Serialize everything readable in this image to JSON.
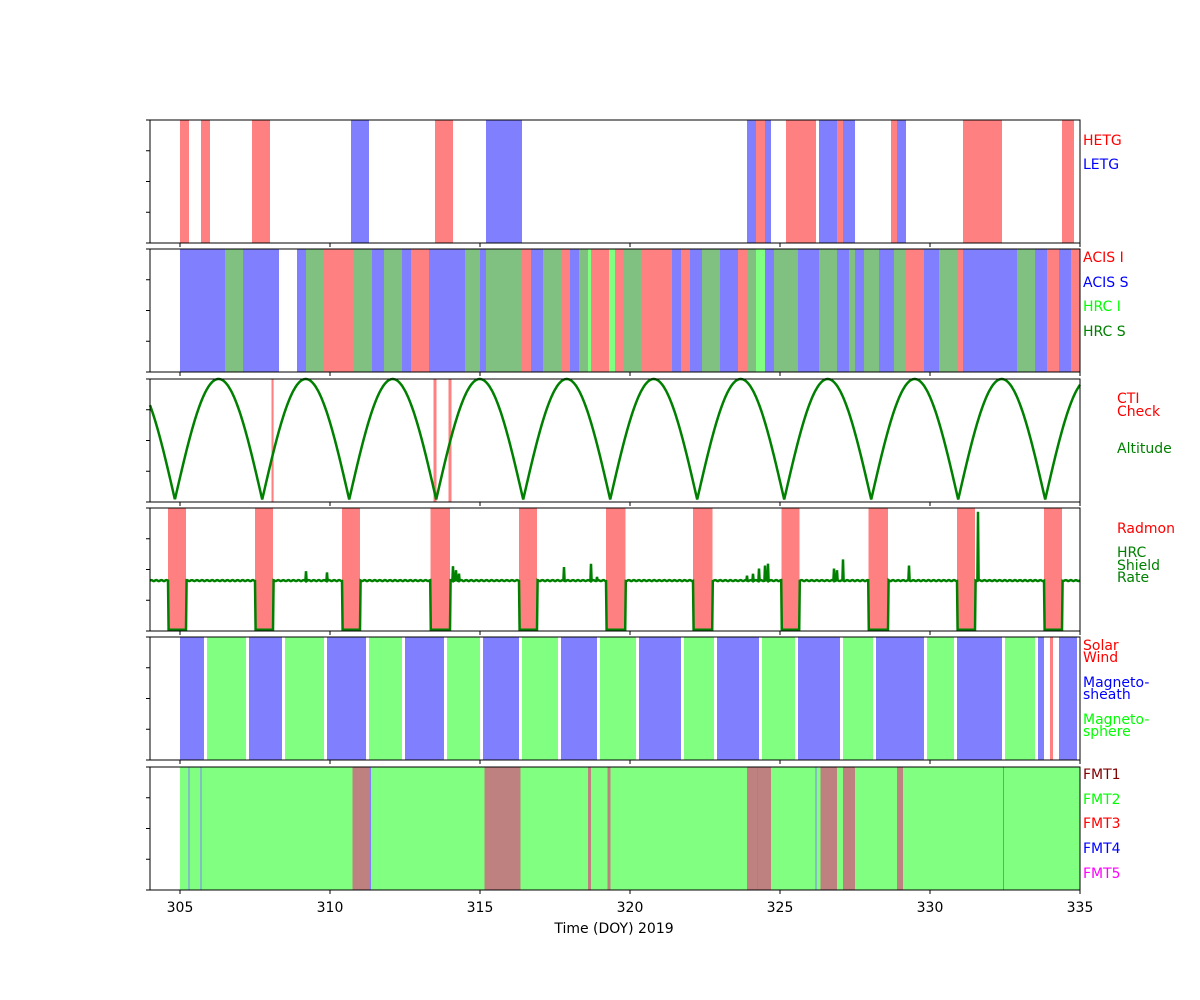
{
  "chart_data": {
    "type": "timeline",
    "xlabel": "Time (DOY) 2019",
    "xlim": [
      304,
      335
    ],
    "xticks": [
      305,
      310,
      315,
      320,
      325,
      330,
      335
    ],
    "panels": [
      {
        "id": "grating",
        "legend": [
          {
            "text": "HETG",
            "color": "#ff0000"
          },
          {
            "text": "LETG",
            "color": "#0000ff"
          }
        ],
        "bands": [
          {
            "start": 305.0,
            "end": 305.3,
            "color": "#ff8080"
          },
          {
            "start": 305.7,
            "end": 306.0,
            "color": "#ff8080"
          },
          {
            "start": 307.4,
            "end": 308.0,
            "color": "#ff8080"
          },
          {
            "start": 310.7,
            "end": 311.3,
            "color": "#8080ff"
          },
          {
            "start": 313.5,
            "end": 314.1,
            "color": "#ff8080"
          },
          {
            "start": 315.2,
            "end": 316.4,
            "color": "#8080ff"
          },
          {
            "start": 323.9,
            "end": 324.2,
            "color": "#8080ff"
          },
          {
            "start": 324.2,
            "end": 324.5,
            "color": "#ff8080"
          },
          {
            "start": 324.5,
            "end": 324.7,
            "color": "#8080ff"
          },
          {
            "start": 325.2,
            "end": 326.2,
            "color": "#ff8080"
          },
          {
            "start": 326.3,
            "end": 326.9,
            "color": "#8080ff"
          },
          {
            "start": 326.9,
            "end": 327.1,
            "color": "#ff8080"
          },
          {
            "start": 327.1,
            "end": 327.5,
            "color": "#8080ff"
          },
          {
            "start": 328.7,
            "end": 328.9,
            "color": "#ff8080"
          },
          {
            "start": 328.9,
            "end": 329.2,
            "color": "#8080ff"
          },
          {
            "start": 331.1,
            "end": 332.4,
            "color": "#ff8080"
          },
          {
            "start": 334.4,
            "end": 334.8,
            "color": "#ff8080"
          }
        ]
      },
      {
        "id": "instrument",
        "legend": [
          {
            "text": "ACIS I",
            "color": "#ff0000"
          },
          {
            "text": "ACIS S",
            "color": "#0000ff"
          },
          {
            "text": "HRC I",
            "color": "#00ff00"
          },
          {
            "text": "HRC S",
            "color": "#008000"
          }
        ],
        "bands": [
          {
            "start": 305.0,
            "end": 306.5,
            "color": "#8080ff"
          },
          {
            "start": 306.5,
            "end": 307.1,
            "color": "#80c080"
          },
          {
            "start": 307.1,
            "end": 308.3,
            "color": "#8080ff"
          },
          {
            "start": 308.9,
            "end": 309.2,
            "color": "#8080ff"
          },
          {
            "start": 309.2,
            "end": 309.8,
            "color": "#80c080"
          },
          {
            "start": 309.8,
            "end": 310.8,
            "color": "#ff8080"
          },
          {
            "start": 310.8,
            "end": 311.4,
            "color": "#80c080"
          },
          {
            "start": 311.4,
            "end": 311.8,
            "color": "#8080ff"
          },
          {
            "start": 311.8,
            "end": 312.4,
            "color": "#80c080"
          },
          {
            "start": 312.4,
            "end": 312.7,
            "color": "#8080ff"
          },
          {
            "start": 312.7,
            "end": 313.3,
            "color": "#ff8080"
          },
          {
            "start": 313.3,
            "end": 314.5,
            "color": "#8080ff"
          },
          {
            "start": 314.5,
            "end": 315.0,
            "color": "#80c080"
          },
          {
            "start": 315.0,
            "end": 315.2,
            "color": "#8080ff"
          },
          {
            "start": 315.2,
            "end": 316.4,
            "color": "#80c080"
          },
          {
            "start": 316.4,
            "end": 316.7,
            "color": "#ff8080"
          },
          {
            "start": 316.7,
            "end": 317.1,
            "color": "#8080ff"
          },
          {
            "start": 317.1,
            "end": 317.7,
            "color": "#80c080"
          },
          {
            "start": 317.7,
            "end": 318.0,
            "color": "#ff8080"
          },
          {
            "start": 318.0,
            "end": 318.3,
            "color": "#8080ff"
          },
          {
            "start": 318.3,
            "end": 318.6,
            "color": "#80c080"
          },
          {
            "start": 318.6,
            "end": 318.7,
            "color": "#80ff80"
          },
          {
            "start": 318.7,
            "end": 319.3,
            "color": "#ff8080"
          },
          {
            "start": 319.3,
            "end": 319.5,
            "color": "#80ff80"
          },
          {
            "start": 319.5,
            "end": 319.8,
            "color": "#ff8080"
          },
          {
            "start": 319.8,
            "end": 320.4,
            "color": "#80c080"
          },
          {
            "start": 320.4,
            "end": 321.4,
            "color": "#ff8080"
          },
          {
            "start": 321.4,
            "end": 321.7,
            "color": "#8080ff"
          },
          {
            "start": 321.7,
            "end": 322.0,
            "color": "#ff8080"
          },
          {
            "start": 322.0,
            "end": 322.4,
            "color": "#8080ff"
          },
          {
            "start": 322.4,
            "end": 323.0,
            "color": "#80c080"
          },
          {
            "start": 323.0,
            "end": 323.6,
            "color": "#8080ff"
          },
          {
            "start": 323.6,
            "end": 323.9,
            "color": "#ff8080"
          },
          {
            "start": 323.9,
            "end": 324.2,
            "color": "#80c080"
          },
          {
            "start": 324.2,
            "end": 324.5,
            "color": "#80ff80"
          },
          {
            "start": 324.5,
            "end": 324.8,
            "color": "#8080ff"
          },
          {
            "start": 324.8,
            "end": 325.6,
            "color": "#80c080"
          },
          {
            "start": 325.6,
            "end": 326.3,
            "color": "#8080ff"
          },
          {
            "start": 326.3,
            "end": 326.9,
            "color": "#80c080"
          },
          {
            "start": 326.9,
            "end": 327.3,
            "color": "#8080ff"
          },
          {
            "start": 327.3,
            "end": 327.5,
            "color": "#80c080"
          },
          {
            "start": 327.5,
            "end": 327.8,
            "color": "#8080ff"
          },
          {
            "start": 327.8,
            "end": 328.3,
            "color": "#80c080"
          },
          {
            "start": 328.3,
            "end": 328.8,
            "color": "#8080ff"
          },
          {
            "start": 328.8,
            "end": 329.2,
            "color": "#80c080"
          },
          {
            "start": 329.2,
            "end": 329.8,
            "color": "#ff8080"
          },
          {
            "start": 329.8,
            "end": 330.3,
            "color": "#8080ff"
          },
          {
            "start": 330.3,
            "end": 330.9,
            "color": "#80c080"
          },
          {
            "start": 330.9,
            "end": 331.1,
            "color": "#ff8080"
          },
          {
            "start": 331.1,
            "end": 332.9,
            "color": "#8080ff"
          },
          {
            "start": 332.9,
            "end": 333.5,
            "color": "#80c080"
          },
          {
            "start": 333.5,
            "end": 333.9,
            "color": "#8080ff"
          },
          {
            "start": 333.9,
            "end": 334.3,
            "color": "#ff8080"
          },
          {
            "start": 334.3,
            "end": 334.7,
            "color": "#8080ff"
          },
          {
            "start": 334.7,
            "end": 335.0,
            "color": "#ff8080"
          }
        ]
      },
      {
        "id": "altitude",
        "legend": [
          {
            "text": "CTI",
            "color": "#ff0000"
          },
          {
            "text": "Check",
            "color": "#ff0000"
          },
          {
            "text": "Altitude",
            "color": "#008000"
          }
        ],
        "bands": [
          {
            "start": 308.05,
            "end": 308.12,
            "color": "#ff8080"
          },
          {
            "start": 313.45,
            "end": 313.55,
            "color": "#ff8080"
          },
          {
            "start": 313.95,
            "end": 314.05,
            "color": "#ff8080"
          }
        ],
        "line": {
          "color": "#008000",
          "ylim": [
            0,
            1
          ],
          "perigees": [
            304.83,
            307.74,
            310.64,
            313.54,
            316.44,
            319.34,
            322.24,
            325.14,
            328.04,
            330.94,
            333.84
          ],
          "period": 2.9
        }
      },
      {
        "id": "radmon",
        "legend": [
          {
            "text": "Radmon",
            "color": "#ff0000"
          },
          {
            "text": "HRC",
            "color": "#008000"
          },
          {
            "text": "Shield",
            "color": "#008000"
          },
          {
            "text": "Rate",
            "color": "#008000"
          }
        ],
        "bands": [
          {
            "start": 304.6,
            "end": 305.2,
            "color": "#ff8080"
          },
          {
            "start": 307.5,
            "end": 308.1,
            "color": "#ff8080"
          },
          {
            "start": 310.4,
            "end": 311.0,
            "color": "#ff8080"
          },
          {
            "start": 313.35,
            "end": 314.0,
            "color": "#ff8080"
          },
          {
            "start": 316.3,
            "end": 316.9,
            "color": "#ff8080"
          },
          {
            "start": 319.2,
            "end": 319.85,
            "color": "#ff8080"
          },
          {
            "start": 322.1,
            "end": 322.75,
            "color": "#ff8080"
          },
          {
            "start": 325.05,
            "end": 325.65,
            "color": "#ff8080"
          },
          {
            "start": 327.95,
            "end": 328.6,
            "color": "#ff8080"
          },
          {
            "start": 330.9,
            "end": 331.5,
            "color": "#ff8080"
          },
          {
            "start": 333.8,
            "end": 334.4,
            "color": "#ff8080"
          }
        ],
        "line": {
          "color": "#008000",
          "ylim": [
            0,
            1
          ],
          "baseline": 0.41,
          "low": 0.01,
          "dropouts": [
            [
              304.6,
              305.2
            ],
            [
              307.5,
              308.1
            ],
            [
              310.4,
              311.0
            ],
            [
              313.35,
              314.0
            ],
            [
              316.3,
              316.9
            ],
            [
              319.2,
              319.85
            ],
            [
              322.1,
              322.75
            ],
            [
              325.05,
              325.65
            ],
            [
              327.95,
              328.6
            ],
            [
              330.9,
              331.5
            ],
            [
              333.8,
              334.4
            ]
          ],
          "spikes": [
            [
              309.2,
              0.49
            ],
            [
              309.9,
              0.48
            ],
            [
              314.1,
              0.53
            ],
            [
              314.2,
              0.49
            ],
            [
              314.3,
              0.47
            ],
            [
              317.8,
              0.52
            ],
            [
              318.7,
              0.55
            ],
            [
              318.9,
              0.44
            ],
            [
              323.9,
              0.45
            ],
            [
              324.1,
              0.47
            ],
            [
              324.3,
              0.51
            ],
            [
              324.5,
              0.53
            ],
            [
              324.6,
              0.55
            ],
            [
              326.8,
              0.51
            ],
            [
              326.9,
              0.49
            ],
            [
              327.1,
              0.58
            ],
            [
              329.3,
              0.53
            ],
            [
              331.6,
              0.97
            ]
          ]
        }
      },
      {
        "id": "region",
        "legend": [
          {
            "text": "Solar",
            "color": "#ff0000"
          },
          {
            "text": "Wind",
            "color": "#ff0000"
          },
          {
            "text": "Magneto-",
            "color": "#0000ff"
          },
          {
            "text": "sheath",
            "color": "#0000ff"
          },
          {
            "text": "Magneto-",
            "color": "#00ff00"
          },
          {
            "text": "sphere",
            "color": "#00ff00"
          }
        ],
        "bands": [
          {
            "start": 305.0,
            "end": 305.8,
            "color": "#8080ff"
          },
          {
            "start": 305.9,
            "end": 307.2,
            "color": "#80ff80"
          },
          {
            "start": 307.3,
            "end": 308.4,
            "color": "#8080ff"
          },
          {
            "start": 308.5,
            "end": 309.8,
            "color": "#80ff80"
          },
          {
            "start": 309.9,
            "end": 311.2,
            "color": "#8080ff"
          },
          {
            "start": 311.3,
            "end": 312.4,
            "color": "#80ff80"
          },
          {
            "start": 312.5,
            "end": 313.8,
            "color": "#8080ff"
          },
          {
            "start": 313.9,
            "end": 315.0,
            "color": "#80ff80"
          },
          {
            "start": 315.1,
            "end": 316.3,
            "color": "#8080ff"
          },
          {
            "start": 316.4,
            "end": 317.6,
            "color": "#80ff80"
          },
          {
            "start": 317.7,
            "end": 318.9,
            "color": "#8080ff"
          },
          {
            "start": 319.0,
            "end": 320.2,
            "color": "#80ff80"
          },
          {
            "start": 320.3,
            "end": 321.7,
            "color": "#8080ff"
          },
          {
            "start": 321.8,
            "end": 322.8,
            "color": "#80ff80"
          },
          {
            "start": 322.9,
            "end": 324.3,
            "color": "#8080ff"
          },
          {
            "start": 324.4,
            "end": 325.5,
            "color": "#80ff80"
          },
          {
            "start": 325.6,
            "end": 327.0,
            "color": "#8080ff"
          },
          {
            "start": 327.1,
            "end": 328.1,
            "color": "#80ff80"
          },
          {
            "start": 328.2,
            "end": 329.8,
            "color": "#8080ff"
          },
          {
            "start": 329.9,
            "end": 330.8,
            "color": "#80ff80"
          },
          {
            "start": 330.9,
            "end": 332.4,
            "color": "#8080ff"
          },
          {
            "start": 332.5,
            "end": 333.5,
            "color": "#80ff80"
          },
          {
            "start": 333.6,
            "end": 333.8,
            "color": "#8080ff"
          },
          {
            "start": 334.0,
            "end": 334.1,
            "color": "#ff8080"
          },
          {
            "start": 334.3,
            "end": 334.9,
            "color": "#8080ff"
          }
        ]
      },
      {
        "id": "fmt",
        "legend": [
          {
            "text": "FMT1",
            "color": "#800000"
          },
          {
            "text": "FMT2",
            "color": "#00ff00"
          },
          {
            "text": "FMT3",
            "color": "#ff0000"
          },
          {
            "text": "FMT4",
            "color": "#0000ff"
          },
          {
            "text": "FMT5",
            "color": "#ff00ff"
          }
        ],
        "bands": [
          {
            "start": 305.0,
            "end": 335.0,
            "color": "#80ff80"
          },
          {
            "start": 310.75,
            "end": 311.35,
            "color": "#bf8080"
          },
          {
            "start": 315.15,
            "end": 316.35,
            "color": "#bf8080"
          },
          {
            "start": 318.6,
            "end": 318.7,
            "color": "#bf8080"
          },
          {
            "start": 319.25,
            "end": 319.35,
            "color": "#bf8080"
          },
          {
            "start": 323.9,
            "end": 324.7,
            "color": "#bf8080"
          },
          {
            "start": 326.35,
            "end": 326.9,
            "color": "#bf8080"
          },
          {
            "start": 327.1,
            "end": 327.5,
            "color": "#bf8080"
          },
          {
            "start": 328.9,
            "end": 329.1,
            "color": "#bf8080"
          }
        ],
        "lines": [
          {
            "at": 305.3,
            "color": "#8080ff"
          },
          {
            "at": 305.7,
            "color": "#8080ff"
          },
          {
            "at": 311.35,
            "color": "#8080ff"
          },
          {
            "at": 324.25,
            "color": "#8080ff"
          },
          {
            "at": 326.2,
            "color": "#8080ff"
          },
          {
            "at": 332.45,
            "color": "#8080ff"
          }
        ]
      }
    ]
  }
}
